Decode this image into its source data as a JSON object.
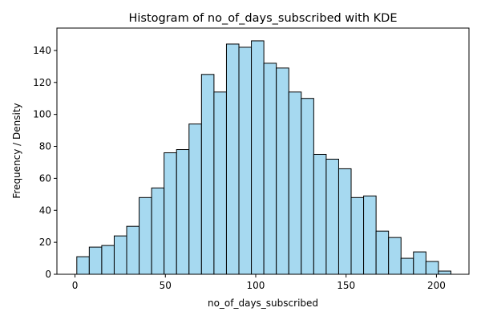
{
  "chart_data": {
    "type": "bar",
    "title": "Histogram of no_of_days_subscribed with KDE",
    "xlabel": "no_of_days_subscribed",
    "ylabel": "Frequency / Density",
    "bar_color": "#a6d9f0",
    "edge_color": "#000000",
    "xlim": [
      -10,
      218
    ],
    "ylim": [
      0,
      154
    ],
    "xticks": [
      0,
      50,
      100,
      150,
      200
    ],
    "yticks": [
      0,
      20,
      40,
      60,
      80,
      100,
      120,
      140
    ],
    "grid": false,
    "bins": [
      {
        "start": 1.0,
        "end": 7.9,
        "count": 11
      },
      {
        "start": 7.9,
        "end": 14.8,
        "count": 17
      },
      {
        "start": 14.8,
        "end": 21.7,
        "count": 18
      },
      {
        "start": 21.7,
        "end": 28.6,
        "count": 24
      },
      {
        "start": 28.6,
        "end": 35.5,
        "count": 30
      },
      {
        "start": 35.5,
        "end": 42.4,
        "count": 48
      },
      {
        "start": 42.4,
        "end": 49.3,
        "count": 54
      },
      {
        "start": 49.3,
        "end": 56.2,
        "count": 76
      },
      {
        "start": 56.2,
        "end": 63.1,
        "count": 78
      },
      {
        "start": 63.1,
        "end": 70.0,
        "count": 94
      },
      {
        "start": 70.0,
        "end": 76.9,
        "count": 125
      },
      {
        "start": 76.9,
        "end": 83.8,
        "count": 114
      },
      {
        "start": 83.8,
        "end": 90.7,
        "count": 144
      },
      {
        "start": 90.7,
        "end": 97.6,
        "count": 142
      },
      {
        "start": 97.6,
        "end": 104.5,
        "count": 146
      },
      {
        "start": 104.5,
        "end": 111.4,
        "count": 132
      },
      {
        "start": 111.4,
        "end": 118.3,
        "count": 129
      },
      {
        "start": 118.3,
        "end": 125.2,
        "count": 114
      },
      {
        "start": 125.2,
        "end": 132.1,
        "count": 110
      },
      {
        "start": 132.1,
        "end": 139.0,
        "count": 75
      },
      {
        "start": 139.0,
        "end": 145.9,
        "count": 72
      },
      {
        "start": 145.9,
        "end": 152.8,
        "count": 66
      },
      {
        "start": 152.8,
        "end": 159.7,
        "count": 48
      },
      {
        "start": 159.7,
        "end": 166.6,
        "count": 49
      },
      {
        "start": 166.6,
        "end": 173.5,
        "count": 27
      },
      {
        "start": 173.5,
        "end": 180.4,
        "count": 23
      },
      {
        "start": 180.4,
        "end": 187.3,
        "count": 10
      },
      {
        "start": 187.3,
        "end": 194.2,
        "count": 14
      },
      {
        "start": 194.2,
        "end": 201.1,
        "count": 8
      },
      {
        "start": 201.1,
        "end": 208.0,
        "count": 2
      }
    ]
  }
}
